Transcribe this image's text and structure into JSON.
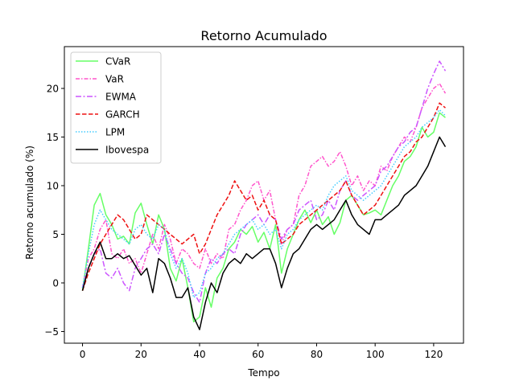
{
  "chart_data": {
    "type": "line",
    "title": "Retorno Acumulado",
    "xlabel": "Tempo",
    "ylabel": "Retorno acumulado (%)",
    "xlim": [
      -6.2,
      130.2
    ],
    "ylim": [
      -6.2,
      24.3
    ],
    "xticks": [
      0,
      20,
      40,
      60,
      80,
      100,
      120
    ],
    "yticks": [
      -5,
      0,
      5,
      10,
      15,
      20
    ],
    "grid": false,
    "legend_position": "upper-left",
    "series": [
      {
        "name": "CVaR",
        "color": "#66ff66",
        "dash": "",
        "x": [
          0,
          2,
          4,
          6,
          8,
          10,
          12,
          14,
          16,
          18,
          20,
          22,
          24,
          26,
          28,
          30,
          32,
          34,
          36,
          38,
          40,
          42,
          44,
          46,
          48,
          50,
          52,
          54,
          56,
          58,
          60,
          62,
          64,
          66,
          68,
          70,
          72,
          74,
          76,
          78,
          80,
          82,
          84,
          86,
          88,
          90,
          92,
          94,
          96,
          98,
          100,
          102,
          104,
          106,
          108,
          110,
          112,
          114,
          116,
          118,
          120,
          122,
          124
        ],
        "y": [
          -0.8,
          3.5,
          8.0,
          9.2,
          7.0,
          6.0,
          4.5,
          4.8,
          4.0,
          7.2,
          8.2,
          6.0,
          4.0,
          7.0,
          5.5,
          1.5,
          0.2,
          2.5,
          -0.5,
          -4.0,
          -3.5,
          -0.5,
          -2.5,
          0.5,
          1.5,
          3.5,
          4.2,
          5.5,
          5.0,
          5.8,
          4.2,
          5.2,
          3.5,
          6.0,
          1.0,
          3.5,
          5.0,
          6.5,
          7.5,
          6.2,
          7.5,
          6.0,
          6.8,
          5.0,
          6.2,
          8.5,
          9.0,
          8.0,
          7.0,
          7.2,
          7.5,
          7.0,
          8.5,
          10.0,
          11.0,
          12.5,
          13.0,
          14.0,
          16.0,
          15.0,
          15.5,
          17.5,
          17.0
        ]
      },
      {
        "name": "VaR",
        "color": "#ff55cc",
        "dash": "5,2,1.5,2",
        "x": [
          0,
          2,
          4,
          6,
          8,
          10,
          12,
          14,
          16,
          18,
          20,
          22,
          24,
          26,
          28,
          30,
          32,
          34,
          36,
          38,
          40,
          42,
          44,
          46,
          48,
          50,
          52,
          54,
          56,
          58,
          60,
          62,
          64,
          66,
          68,
          70,
          72,
          74,
          76,
          78,
          80,
          82,
          84,
          86,
          88,
          90,
          92,
          94,
          96,
          98,
          100,
          102,
          104,
          106,
          108,
          110,
          112,
          114,
          116,
          118,
          120,
          122,
          124
        ],
        "y": [
          -0.5,
          2.5,
          3.5,
          5.5,
          6.5,
          3.0,
          2.5,
          3.5,
          2.0,
          2.5,
          1.0,
          3.0,
          5.0,
          3.5,
          6.0,
          4.5,
          2.0,
          3.5,
          3.0,
          2.0,
          1.5,
          3.5,
          2.0,
          3.0,
          2.5,
          5.5,
          6.0,
          7.5,
          8.5,
          10.0,
          10.5,
          8.5,
          9.5,
          6.5,
          4.0,
          5.5,
          6.0,
          9.0,
          10.0,
          12.0,
          12.5,
          13.0,
          12.0,
          12.5,
          13.5,
          12.0,
          10.0,
          11.0,
          9.5,
          10.5,
          10.0,
          12.0,
          11.5,
          13.0,
          14.0,
          15.0,
          14.5,
          16.0,
          18.0,
          19.0,
          20.0,
          20.5,
          19.5
        ]
      },
      {
        "name": "EWMA",
        "color": "#cc55ff",
        "dash": "7,2.5,2,2.5",
        "x": [
          0,
          2,
          4,
          6,
          8,
          10,
          12,
          14,
          16,
          18,
          20,
          22,
          24,
          26,
          28,
          30,
          32,
          34,
          36,
          38,
          40,
          42,
          44,
          46,
          48,
          50,
          52,
          54,
          56,
          58,
          60,
          62,
          64,
          66,
          68,
          70,
          72,
          74,
          76,
          78,
          80,
          82,
          84,
          86,
          88,
          90,
          92,
          94,
          96,
          98,
          100,
          102,
          104,
          106,
          108,
          110,
          112,
          114,
          116,
          118,
          120,
          122,
          124
        ],
        "y": [
          -0.5,
          1.5,
          3.0,
          3.5,
          1.0,
          0.5,
          1.5,
          0.0,
          -0.8,
          1.5,
          2.5,
          3.5,
          4.0,
          3.0,
          5.0,
          3.5,
          2.0,
          1.0,
          0.5,
          -1.0,
          -2.0,
          1.0,
          2.5,
          2.0,
          3.0,
          3.5,
          3.0,
          5.0,
          6.0,
          6.5,
          7.0,
          6.0,
          7.0,
          6.5,
          4.5,
          5.5,
          6.0,
          7.5,
          8.0,
          8.5,
          6.5,
          7.0,
          8.5,
          7.5,
          9.5,
          10.5,
          9.0,
          8.5,
          9.0,
          9.5,
          10.0,
          11.5,
          12.0,
          13.0,
          14.0,
          14.5,
          15.5,
          16.0,
          18.0,
          20.0,
          21.5,
          22.8,
          21.8
        ]
      },
      {
        "name": "GARCH",
        "color": "#ee1111",
        "dash": "5.5,2.5",
        "x": [
          0,
          2,
          4,
          6,
          8,
          10,
          12,
          14,
          16,
          18,
          20,
          22,
          24,
          26,
          28,
          30,
          32,
          34,
          36,
          38,
          40,
          42,
          44,
          46,
          48,
          50,
          52,
          54,
          56,
          58,
          60,
          62,
          64,
          66,
          68,
          70,
          72,
          74,
          76,
          78,
          80,
          82,
          84,
          86,
          88,
          90,
          92,
          94,
          96,
          98,
          100,
          102,
          104,
          106,
          108,
          110,
          112,
          114,
          116,
          118,
          120,
          122,
          124
        ],
        "y": [
          -0.8,
          1.0,
          2.5,
          4.0,
          5.0,
          6.0,
          7.0,
          6.5,
          5.5,
          4.5,
          5.0,
          7.0,
          6.5,
          6.0,
          5.5,
          5.0,
          4.5,
          4.0,
          4.5,
          5.0,
          3.0,
          4.0,
          5.5,
          7.0,
          8.0,
          9.0,
          10.5,
          9.5,
          8.5,
          9.0,
          7.5,
          8.5,
          7.0,
          6.5,
          4.0,
          4.5,
          5.0,
          6.0,
          6.5,
          7.0,
          7.5,
          8.0,
          8.5,
          9.0,
          9.5,
          10.5,
          9.0,
          8.0,
          7.0,
          7.5,
          8.0,
          9.0,
          10.0,
          11.0,
          12.0,
          13.0,
          13.5,
          14.5,
          15.0,
          16.0,
          17.0,
          18.5,
          18.0
        ]
      },
      {
        "name": "LPM",
        "color": "#44ccff",
        "dash": "1.5,2",
        "x": [
          0,
          2,
          4,
          6,
          8,
          10,
          12,
          14,
          16,
          18,
          20,
          22,
          24,
          26,
          28,
          30,
          32,
          34,
          36,
          38,
          40,
          42,
          44,
          46,
          48,
          50,
          52,
          54,
          56,
          58,
          60,
          62,
          64,
          66,
          68,
          70,
          72,
          74,
          76,
          78,
          80,
          82,
          84,
          86,
          88,
          90,
          92,
          94,
          96,
          98,
          100,
          102,
          104,
          106,
          108,
          110,
          112,
          114,
          116,
          118,
          120,
          122,
          124
        ],
        "y": [
          -0.5,
          3.0,
          6.0,
          7.5,
          6.5,
          5.5,
          5.0,
          4.5,
          4.0,
          5.5,
          6.0,
          5.0,
          4.5,
          6.0,
          5.5,
          3.0,
          1.5,
          2.5,
          1.0,
          -1.5,
          -1.0,
          1.0,
          1.5,
          2.5,
          3.0,
          4.0,
          5.0,
          5.5,
          6.0,
          6.5,
          5.5,
          6.0,
          5.0,
          5.5,
          3.5,
          5.0,
          5.5,
          6.5,
          7.0,
          7.5,
          8.0,
          7.5,
          9.0,
          10.0,
          10.5,
          11.0,
          9.5,
          9.0,
          8.5,
          9.0,
          9.5,
          10.0,
          11.0,
          12.0,
          13.0,
          14.0,
          14.5,
          15.0,
          16.0,
          16.5,
          17.0,
          17.8,
          17.2
        ]
      },
      {
        "name": "Ibovespa",
        "color": "#000000",
        "dash": "",
        "x": [
          0,
          2,
          4,
          6,
          8,
          10,
          12,
          14,
          16,
          18,
          20,
          22,
          24,
          26,
          28,
          30,
          32,
          34,
          36,
          38,
          40,
          42,
          44,
          46,
          48,
          50,
          52,
          54,
          56,
          58,
          60,
          62,
          64,
          66,
          68,
          70,
          72,
          74,
          76,
          78,
          80,
          82,
          84,
          86,
          88,
          90,
          92,
          94,
          96,
          98,
          100,
          102,
          104,
          106,
          108,
          110,
          112,
          114,
          116,
          118,
          120,
          122,
          124
        ],
        "y": [
          -0.8,
          1.5,
          3.0,
          4.2,
          2.5,
          2.5,
          3.0,
          2.5,
          2.8,
          1.8,
          0.8,
          1.5,
          -1.0,
          2.5,
          2.0,
          0.5,
          -1.5,
          -1.5,
          -0.5,
          -3.5,
          -4.8,
          -2.0,
          0.0,
          -1.0,
          1.0,
          2.0,
          2.5,
          2.0,
          3.0,
          2.5,
          3.0,
          3.5,
          3.5,
          2.0,
          -0.5,
          1.5,
          3.0,
          3.5,
          4.5,
          5.5,
          6.0,
          5.5,
          6.0,
          6.5,
          7.5,
          8.5,
          7.0,
          6.0,
          5.5,
          5.0,
          6.5,
          6.5,
          7.0,
          7.5,
          8.0,
          9.0,
          9.5,
          10.0,
          11.0,
          12.0,
          13.5,
          15.0,
          14.0
        ]
      }
    ]
  }
}
